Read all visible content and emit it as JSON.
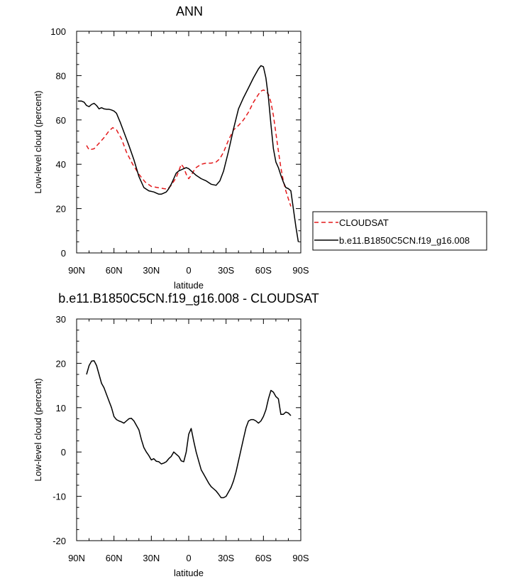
{
  "chart_data": [
    {
      "type": "line",
      "title": "ANN",
      "xlabel": "latitude",
      "ylabel": "Low-level cloud (percent)",
      "xlim": [
        90,
        -90
      ],
      "ylim": [
        0,
        100
      ],
      "xticks": [
        90,
        60,
        30,
        0,
        -30,
        -60,
        -90
      ],
      "xtick_labels": [
        "90N",
        "60N",
        "30N",
        "0",
        "30S",
        "60S",
        "90S"
      ],
      "yticks": [
        0,
        20,
        40,
        60,
        80,
        100
      ],
      "ytick_labels": [
        "0",
        "20",
        "40",
        "60",
        "80",
        "100"
      ],
      "legend_position": "right",
      "series": [
        {
          "name": "CLOUDSAT",
          "color": "#e41a1c",
          "dash": "dashed",
          "x": [
            82,
            80,
            76,
            72,
            68,
            64,
            61,
            58,
            54,
            50,
            45,
            40,
            35,
            30,
            25,
            20,
            17,
            14,
            10,
            8,
            6,
            4,
            2,
            0,
            -2,
            -4,
            -6,
            -10,
            -14,
            -18,
            -22,
            -25,
            -28,
            -32,
            -36,
            -40,
            -44,
            -48,
            -52,
            -56,
            -58,
            -60,
            -62,
            -64,
            -66,
            -68,
            -70,
            -72,
            -74,
            -76,
            -78,
            -80,
            -82
          ],
          "y": [
            48.5,
            46.5,
            47,
            49.5,
            52,
            55,
            56.5,
            55.5,
            51.5,
            45.5,
            40,
            35.5,
            32,
            30,
            29.5,
            29,
            28.8,
            30.5,
            34,
            37,
            40,
            38.5,
            35.5,
            33.5,
            35,
            37,
            38.5,
            40,
            40.5,
            40.5,
            41,
            42.5,
            45.5,
            51,
            55.5,
            57.5,
            60,
            63.5,
            68,
            71.5,
            73,
            73.5,
            73,
            71.5,
            68,
            62,
            54,
            46,
            38.5,
            32.5,
            28,
            24.5,
            21
          ]
        },
        {
          "name": "b.e11.B1850C5CN.f19_g16.008",
          "color": "#000000",
          "dash": "solid",
          "x": [
            89,
            86,
            84,
            82,
            80,
            78,
            76,
            74,
            72,
            70,
            68,
            66,
            64,
            62,
            60,
            58,
            55,
            52,
            48,
            44,
            40,
            36,
            32,
            28,
            26,
            24,
            22,
            20,
            18,
            16,
            14,
            12,
            10,
            8,
            6,
            4,
            2,
            0,
            -2,
            -4,
            -6,
            -10,
            -14,
            -18,
            -22,
            -25,
            -28,
            -32,
            -36,
            -40,
            -44,
            -48,
            -52,
            -56,
            -58,
            -60,
            -62,
            -64,
            -66,
            -68,
            -70,
            -72,
            -74,
            -76,
            -78,
            -80,
            -82,
            -84,
            -86,
            -88
          ],
          "y": [
            68.5,
            68.5,
            68,
            66.5,
            66,
            67,
            67.5,
            66.5,
            65,
            65.5,
            65,
            64.8,
            64.8,
            64.5,
            64,
            63,
            59,
            54.5,
            48.5,
            42,
            34.5,
            29.5,
            28,
            27.5,
            27,
            26.5,
            26.5,
            27,
            27.5,
            29,
            31,
            33.5,
            36,
            37,
            37.5,
            38,
            38.5,
            38,
            37,
            36,
            35,
            33.5,
            32.5,
            31,
            30.5,
            32.5,
            37,
            46,
            56,
            65,
            70,
            74.5,
            79,
            83,
            84.5,
            84,
            79,
            70,
            58,
            47,
            41,
            38.5,
            35,
            32,
            29.5,
            29,
            28,
            20,
            12,
            5
          ]
        }
      ]
    },
    {
      "type": "line",
      "title": "b.e11.B1850C5CN.f19_g16.008 - CLOUDSAT",
      "xlabel": "latitude",
      "ylabel": "Low-level cloud (percent)",
      "xlim": [
        90,
        -90
      ],
      "ylim": [
        -20,
        30
      ],
      "xticks": [
        90,
        60,
        30,
        0,
        -30,
        -60,
        -90
      ],
      "xtick_labels": [
        "90N",
        "60N",
        "30N",
        "0",
        "30S",
        "60S",
        "90S"
      ],
      "yticks": [
        -20,
        -10,
        0,
        10,
        20,
        30
      ],
      "ytick_labels": [
        "-20",
        "-10",
        "0",
        "10",
        "20",
        "30"
      ],
      "series": [
        {
          "color": "#000000",
          "dash": "solid",
          "x": [
            82,
            80,
            78,
            76,
            74,
            72,
            70,
            68,
            66,
            64,
            62,
            60,
            58,
            56,
            54,
            52,
            50,
            48,
            46,
            44,
            42,
            40,
            38,
            36,
            34,
            32,
            30,
            28,
            26,
            24,
            22,
            20,
            18,
            16,
            14,
            12,
            10,
            8,
            6,
            4,
            2,
            0,
            -2,
            -4,
            -6,
            -8,
            -10,
            -12,
            -14,
            -16,
            -18,
            -20,
            -22,
            -24,
            -26,
            -28,
            -30,
            -32,
            -34,
            -36,
            -38,
            -40,
            -42,
            -44,
            -46,
            -48,
            -50,
            -52,
            -54,
            -56,
            -58,
            -60,
            -62,
            -64,
            -66,
            -68,
            -70,
            -72,
            -74,
            -76,
            -78,
            -80,
            -82
          ],
          "y": [
            17.5,
            19.5,
            20.5,
            20.6,
            19.5,
            17.5,
            15.5,
            14.5,
            13,
            11.5,
            10,
            8,
            7.3,
            7,
            6.8,
            6.5,
            7,
            7.5,
            7.6,
            7,
            6,
            5,
            2.8,
            1,
            0,
            -0.8,
            -1.8,
            -1.5,
            -2.1,
            -2.2,
            -2.7,
            -2.5,
            -2.2,
            -1.5,
            -1,
            0,
            -0.5,
            -1,
            -2,
            -2.2,
            0,
            4,
            5.3,
            2.5,
            0,
            -2,
            -4,
            -5,
            -6,
            -7,
            -7.8,
            -8.3,
            -8.8,
            -9.5,
            -10.3,
            -10.3,
            -10,
            -9,
            -8,
            -6.5,
            -4.5,
            -2,
            0.5,
            3,
            5.5,
            7,
            7.3,
            7.3,
            7,
            6.5,
            7,
            8,
            9.5,
            12,
            13.9,
            13.5,
            12.5,
            12,
            8.5,
            8.5,
            9,
            8.8,
            8.2
          ]
        }
      ]
    }
  ]
}
